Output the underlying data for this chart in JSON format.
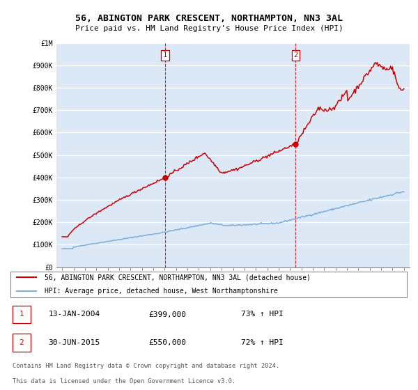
{
  "title": "56, ABINGTON PARK CRESCENT, NORTHAMPTON, NN3 3AL",
  "subtitle": "Price paid vs. HM Land Registry's House Price Index (HPI)",
  "red_line_label": "56, ABINGTON PARK CRESCENT, NORTHAMPTON, NN3 3AL (detached house)",
  "blue_line_label": "HPI: Average price, detached house, West Northamptonshire",
  "sale1_date_num": 2004.04,
  "sale1_label": "13-JAN-2004",
  "sale1_price": "£399,000",
  "sale1_hpi_pct": "73% ↑ HPI",
  "sale2_date_num": 2015.5,
  "sale2_label": "30-JUN-2015",
  "sale2_price": "£550,000",
  "sale2_hpi_pct": "72% ↑ HPI",
  "footer_line1": "Contains HM Land Registry data © Crown copyright and database right 2024.",
  "footer_line2": "This data is licensed under the Open Government Licence v3.0.",
  "ylim": [
    0,
    1000000
  ],
  "xlim": [
    1994.5,
    2025.5
  ],
  "background_color": "#ffffff",
  "plot_bg_color": "#dce8f5",
  "grid_color": "#ffffff",
  "red_color": "#cc0000",
  "blue_color": "#7aaddb"
}
